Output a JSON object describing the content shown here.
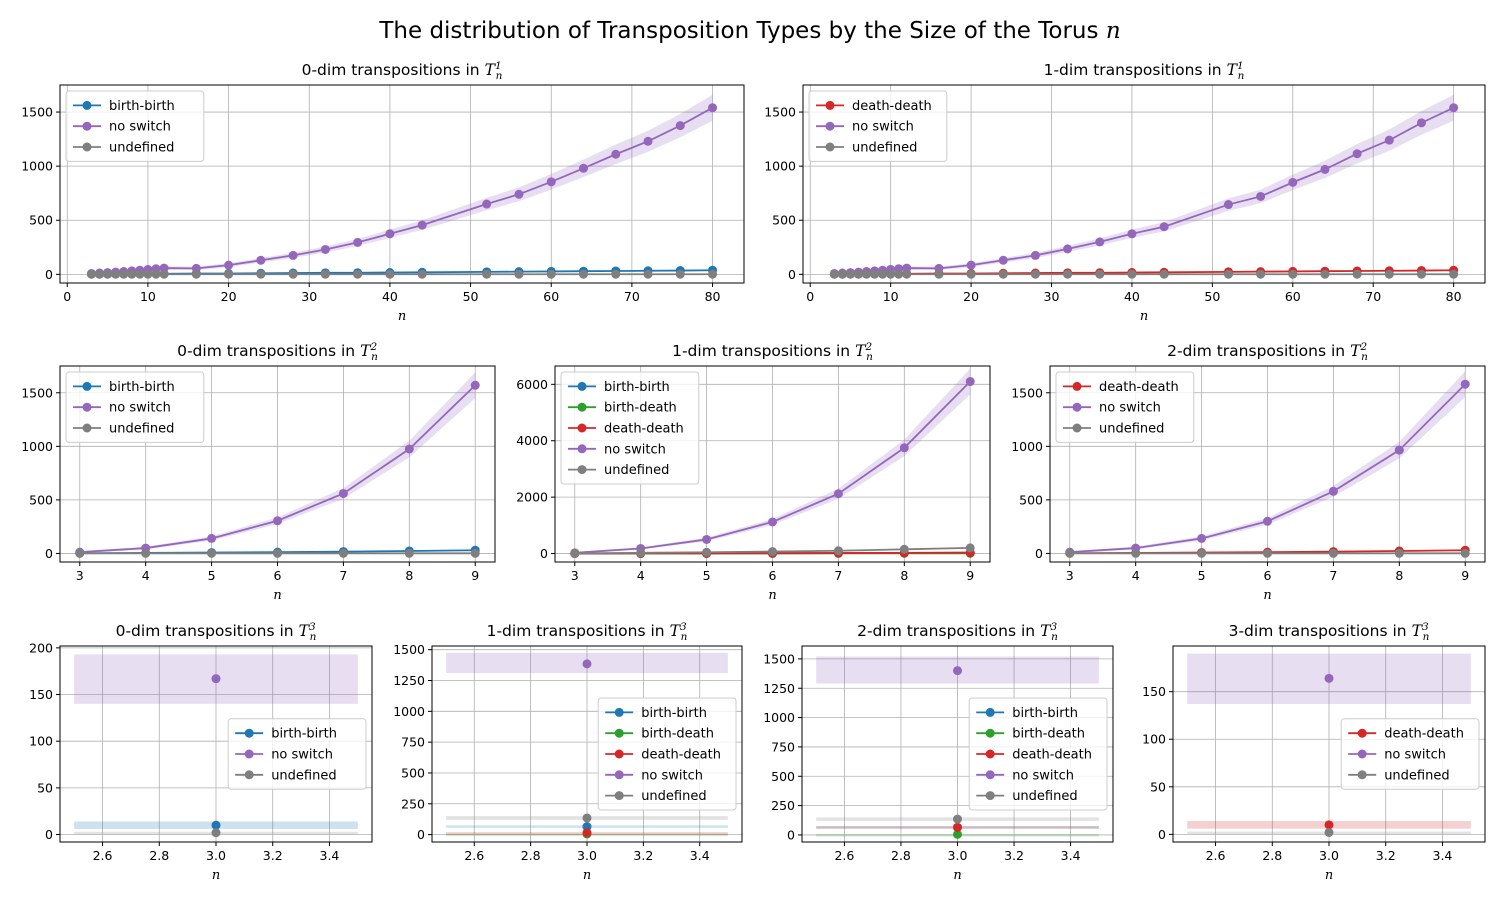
{
  "figure": {
    "title": "The distribution of Transposition Types by the Size of the Torus",
    "title_var": "n"
  },
  "colors": {
    "birth-birth": "#1f77b4",
    "birth-death": "#2ca02c",
    "death-death": "#d62728",
    "no switch": "#9467bd",
    "undefined": "#7f7f7f"
  },
  "chart_data": [
    {
      "type": "line",
      "title": "0-dim transpositions in",
      "title_symbol": "T",
      "title_sup": "1",
      "title_sub": "n",
      "xlabel": "n",
      "xlim": [
        -0.9,
        83.9
      ],
      "ylim": [
        -80,
        1750
      ],
      "xticks": [
        0,
        10,
        20,
        30,
        40,
        50,
        60,
        70,
        80
      ],
      "yticks": [
        0,
        500,
        1000,
        1500
      ],
      "legend": "top-left",
      "x": [
        3,
        4,
        5,
        6,
        7,
        8,
        9,
        10,
        11,
        12,
        16,
        20,
        24,
        28,
        32,
        36,
        40,
        44,
        52,
        56,
        60,
        64,
        68,
        72,
        76,
        80
      ],
      "series": [
        {
          "name": "birth-birth",
          "values": [
            1,
            1,
            2,
            2,
            3,
            3,
            4,
            4,
            5,
            5,
            7,
            8,
            10,
            12,
            14,
            15,
            17,
            19,
            23,
            25,
            27,
            29,
            31,
            33,
            35,
            38
          ],
          "band": [
            0.12,
            0
          ]
        },
        {
          "name": "no switch",
          "values": [
            8,
            12,
            16,
            21,
            26,
            32,
            38,
            45,
            52,
            58,
            55,
            85,
            130,
            175,
            230,
            295,
            375,
            455,
            650,
            740,
            855,
            980,
            1110,
            1230,
            1375,
            1540
          ],
          "band": [
            0.07,
            12
          ]
        },
        {
          "name": "undefined",
          "values": [
            1,
            1,
            1,
            1,
            1,
            1,
            1,
            1,
            1,
            1,
            1,
            1,
            1,
            1,
            1,
            1,
            1,
            1,
            1,
            1,
            1,
            1,
            1,
            1,
            1,
            1
          ],
          "band": [
            0,
            0
          ]
        }
      ]
    },
    {
      "type": "line",
      "title": "1-dim transpositions in",
      "title_symbol": "T",
      "title_sup": "1",
      "title_sub": "n",
      "xlabel": "n",
      "xlim": [
        -0.9,
        83.9
      ],
      "ylim": [
        -80,
        1750
      ],
      "xticks": [
        0,
        10,
        20,
        30,
        40,
        50,
        60,
        70,
        80
      ],
      "yticks": [
        0,
        500,
        1000,
        1500
      ],
      "legend": "top-left",
      "x": [
        3,
        4,
        5,
        6,
        7,
        8,
        9,
        10,
        11,
        12,
        16,
        20,
        24,
        28,
        32,
        36,
        40,
        44,
        52,
        56,
        60,
        64,
        68,
        72,
        76,
        80
      ],
      "series": [
        {
          "name": "death-death",
          "values": [
            1,
            1,
            2,
            2,
            3,
            3,
            4,
            4,
            5,
            5,
            7,
            8,
            10,
            12,
            14,
            15,
            17,
            19,
            23,
            25,
            27,
            29,
            31,
            33,
            35,
            38
          ],
          "band": [
            0.12,
            0
          ]
        },
        {
          "name": "no switch",
          "values": [
            8,
            12,
            16,
            21,
            26,
            32,
            38,
            45,
            52,
            58,
            55,
            85,
            130,
            175,
            235,
            300,
            375,
            440,
            645,
            720,
            850,
            970,
            1115,
            1240,
            1400,
            1540
          ],
          "band": [
            0.07,
            12
          ]
        },
        {
          "name": "undefined",
          "values": [
            1,
            1,
            1,
            1,
            1,
            1,
            1,
            1,
            1,
            1,
            1,
            1,
            1,
            1,
            1,
            1,
            1,
            1,
            1,
            1,
            1,
            1,
            1,
            1,
            1,
            1
          ],
          "band": [
            0,
            0
          ]
        }
      ]
    },
    {
      "type": "line",
      "title": "0-dim transpositions in",
      "title_symbol": "T",
      "title_sup": "2",
      "title_sub": "n",
      "xlabel": "n",
      "xlim": [
        2.7,
        9.3
      ],
      "ylim": [
        -80,
        1750
      ],
      "xticks": [
        3,
        4,
        5,
        6,
        7,
        8,
        9
      ],
      "yticks": [
        0,
        500,
        1000,
        1500
      ],
      "legend": "top-left",
      "x": [
        3,
        4,
        5,
        6,
        7,
        8,
        9
      ],
      "series": [
        {
          "name": "birth-birth",
          "values": [
            2,
            5,
            8,
            12,
            17,
            23,
            30
          ],
          "band": [
            0.12,
            0
          ]
        },
        {
          "name": "no switch",
          "values": [
            12,
            50,
            140,
            305,
            560,
            975,
            1570
          ],
          "band": [
            0.07,
            10
          ]
        },
        {
          "name": "undefined",
          "values": [
            1,
            1,
            1,
            1,
            1,
            1,
            1
          ],
          "band": [
            0,
            0
          ]
        }
      ]
    },
    {
      "type": "line",
      "title": "1-dim transpositions in",
      "title_symbol": "T",
      "title_sup": "2",
      "title_sub": "n",
      "xlabel": "n",
      "xlim": [
        2.7,
        9.3
      ],
      "ylim": [
        -300,
        6650
      ],
      "xticks": [
        3,
        4,
        5,
        6,
        7,
        8,
        9
      ],
      "yticks": [
        0,
        2000,
        4000,
        6000
      ],
      "legend": "top-left",
      "x": [
        3,
        4,
        5,
        6,
        7,
        8,
        9
      ],
      "series": [
        {
          "name": "birth-birth",
          "values": [
            2,
            5,
            8,
            12,
            17,
            23,
            30
          ],
          "band": [
            0.12,
            0
          ]
        },
        {
          "name": "birth-death",
          "values": [
            1,
            2,
            3,
            4,
            5,
            6,
            7
          ],
          "band": [
            0,
            0
          ]
        },
        {
          "name": "death-death",
          "values": [
            2,
            5,
            8,
            12,
            17,
            23,
            30
          ],
          "band": [
            0.12,
            0
          ]
        },
        {
          "name": "no switch",
          "values": [
            25,
            180,
            500,
            1120,
            2120,
            3750,
            6100
          ],
          "band": [
            0.07,
            30
          ]
        },
        {
          "name": "undefined",
          "values": [
            10,
            25,
            45,
            70,
            100,
            150,
            200
          ],
          "band": [
            0.1,
            0
          ]
        }
      ]
    },
    {
      "type": "line",
      "title": "2-dim transpositions in",
      "title_symbol": "T",
      "title_sup": "2",
      "title_sub": "n",
      "xlabel": "n",
      "xlim": [
        2.7,
        9.3
      ],
      "ylim": [
        -80,
        1750
      ],
      "xticks": [
        3,
        4,
        5,
        6,
        7,
        8,
        9
      ],
      "yticks": [
        0,
        500,
        1000,
        1500
      ],
      "legend": "top-left",
      "x": [
        3,
        4,
        5,
        6,
        7,
        8,
        9
      ],
      "series": [
        {
          "name": "death-death",
          "values": [
            2,
            5,
            8,
            12,
            17,
            23,
            30
          ],
          "band": [
            0.12,
            0
          ]
        },
        {
          "name": "no switch",
          "values": [
            12,
            50,
            140,
            300,
            580,
            965,
            1580
          ],
          "band": [
            0.07,
            10
          ]
        },
        {
          "name": "undefined",
          "values": [
            1,
            1,
            1,
            1,
            1,
            1,
            1
          ],
          "band": [
            0,
            0
          ]
        }
      ]
    },
    {
      "type": "scatter",
      "title": "0-dim transpositions in",
      "title_symbol": "T",
      "title_sup": "3",
      "title_sub": "n",
      "xlabel": "n",
      "xlim": [
        2.45,
        3.55
      ],
      "ylim": [
        -8,
        202
      ],
      "xticks": [
        2.6,
        2.8,
        3.0,
        3.2,
        3.4
      ],
      "xtick_labels": [
        "2.6",
        "2.8",
        "3.0",
        "3.2",
        "3.4"
      ],
      "yticks": [
        0,
        50,
        100,
        150,
        200
      ],
      "legend": "center-right",
      "x": [
        3.0
      ],
      "band_x": [
        2.5,
        3.5
      ],
      "series": [
        {
          "name": "birth-birth",
          "values": [
            10
          ],
          "band_range": [
            6,
            14
          ]
        },
        {
          "name": "no switch",
          "values": [
            167
          ],
          "band_range": [
            140,
            193
          ]
        },
        {
          "name": "undefined",
          "values": [
            2
          ],
          "band_range": [
            1,
            3
          ]
        }
      ]
    },
    {
      "type": "scatter",
      "title": "1-dim transpositions in",
      "title_symbol": "T",
      "title_sup": "3",
      "title_sub": "n",
      "xlabel": "n",
      "xlim": [
        2.45,
        3.55
      ],
      "ylim": [
        -60,
        1530
      ],
      "xticks": [
        2.6,
        2.8,
        3.0,
        3.2,
        3.4
      ],
      "xtick_labels": [
        "2.6",
        "2.8",
        "3.0",
        "3.2",
        "3.4"
      ],
      "yticks": [
        0,
        250,
        500,
        750,
        1000,
        1250,
        1500
      ],
      "legend": "center-right",
      "x": [
        3.0
      ],
      "band_x": [
        2.5,
        3.5
      ],
      "series": [
        {
          "name": "birth-birth",
          "values": [
            65
          ],
          "band_range": [
            55,
            75
          ]
        },
        {
          "name": "birth-death",
          "values": [
            5
          ],
          "band_range": [
            2,
            8
          ]
        },
        {
          "name": "death-death",
          "values": [
            15
          ],
          "band_range": [
            10,
            20
          ]
        },
        {
          "name": "no switch",
          "values": [
            1385
          ],
          "band_range": [
            1310,
            1475
          ]
        },
        {
          "name": "undefined",
          "values": [
            135
          ],
          "band_range": [
            120,
            150
          ]
        }
      ]
    },
    {
      "type": "scatter",
      "title": "2-dim transpositions in",
      "title_symbol": "T",
      "title_sup": "3",
      "title_sub": "n",
      "xlabel": "n",
      "xlim": [
        2.45,
        3.55
      ],
      "ylim": [
        -60,
        1610
      ],
      "xticks": [
        2.6,
        2.8,
        3.0,
        3.2,
        3.4
      ],
      "xtick_labels": [
        "2.6",
        "2.8",
        "3.0",
        "3.2",
        "3.4"
      ],
      "yticks": [
        0,
        250,
        500,
        750,
        1000,
        1250,
        1500
      ],
      "legend": "center-right",
      "x": [
        3.0
      ],
      "band_x": [
        2.5,
        3.5
      ],
      "series": [
        {
          "name": "birth-birth",
          "values": [
            65
          ],
          "band_range": [
            55,
            75
          ]
        },
        {
          "name": "birth-death",
          "values": [
            5
          ],
          "band_range": [
            2,
            8
          ]
        },
        {
          "name": "death-death",
          "values": [
            65
          ],
          "band_range": [
            55,
            75
          ]
        },
        {
          "name": "no switch",
          "values": [
            1400
          ],
          "band_range": [
            1290,
            1520
          ]
        },
        {
          "name": "undefined",
          "values": [
            135
          ],
          "band_range": [
            120,
            150
          ]
        }
      ]
    },
    {
      "type": "scatter",
      "title": "3-dim transpositions in",
      "title_symbol": "T",
      "title_sup": "3",
      "title_sub": "n",
      "xlabel": "n",
      "xlim": [
        2.45,
        3.55
      ],
      "ylim": [
        -8,
        198
      ],
      "xticks": [
        2.6,
        2.8,
        3.0,
        3.2,
        3.4
      ],
      "xtick_labels": [
        "2.6",
        "2.8",
        "3.0",
        "3.2",
        "3.4"
      ],
      "yticks": [
        0,
        50,
        100,
        150
      ],
      "legend": "center-right",
      "x": [
        3.0
      ],
      "band_x": [
        2.5,
        3.5
      ],
      "series": [
        {
          "name": "death-death",
          "values": [
            10
          ],
          "band_range": [
            6,
            14
          ]
        },
        {
          "name": "no switch",
          "values": [
            164
          ],
          "band_range": [
            137,
            190
          ]
        },
        {
          "name": "undefined",
          "values": [
            2
          ],
          "band_range": [
            1,
            3
          ]
        }
      ]
    }
  ]
}
